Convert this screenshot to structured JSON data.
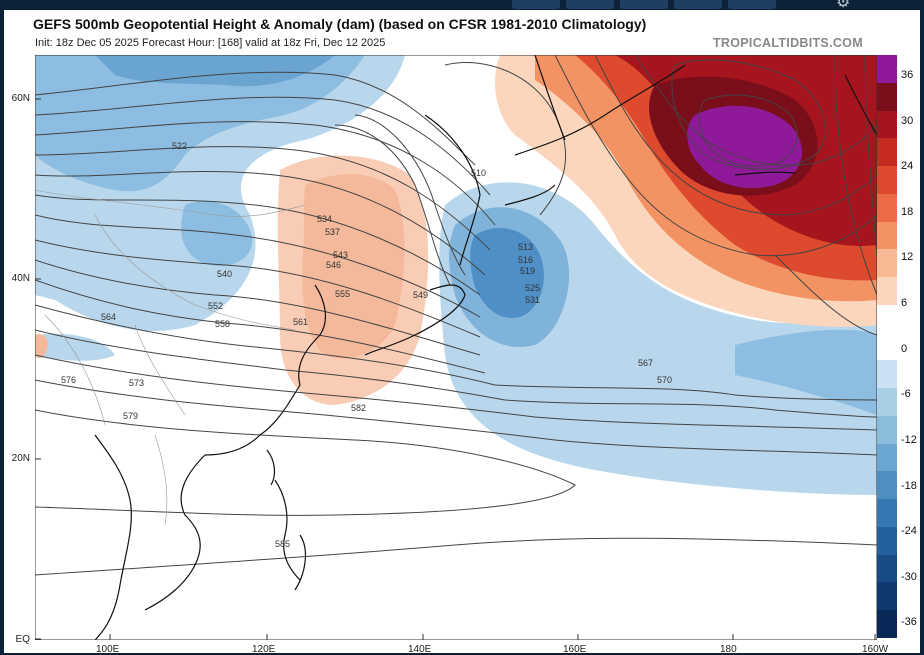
{
  "header": {
    "title": "GEFS 500mb Geopotential Height & Anomaly (dam) (based on CFSR 1981-2010 Climatology)",
    "subtitle": "Init: 18z Dec 05 2025   Forecast Hour: [168]   valid at 18z Fri, Dec 12 2025",
    "brand": "TROPICALTIDBITS.COM"
  },
  "map": {
    "lat_labels": [
      "60N",
      "40N",
      "20N",
      "EQ"
    ],
    "lon_labels": [
      "100E",
      "120E",
      "140E",
      "160E",
      "180",
      "160W"
    ],
    "contour_labels": [
      "510",
      "513",
      "516",
      "519",
      "522",
      "525",
      "531",
      "534",
      "537",
      "540",
      "543",
      "546",
      "549",
      "552",
      "555",
      "558",
      "561",
      "564",
      "567",
      "570",
      "573",
      "576",
      "579",
      "582",
      "585"
    ],
    "colorbar": {
      "ticks": [
        "36",
        "30",
        "24",
        "18",
        "12",
        "6",
        "0",
        "-6",
        "-12",
        "-18",
        "-24",
        "-30",
        "-36"
      ],
      "colors": [
        "#8e1a9a",
        "#7a0e1a",
        "#a6141d",
        "#c62b22",
        "#dd4a2d",
        "#ec6b45",
        "#f39363",
        "#f8b893",
        "#fbd6bd",
        "#ffffff",
        "#ffffff",
        "#c9e1f0",
        "#a9cfe6",
        "#8bbcdc",
        "#6ba6d0",
        "#4d8fc2",
        "#3478b2",
        "#22609e",
        "#174b86",
        "#0f3870",
        "#0a2857"
      ]
    },
    "colors": {
      "warm_core": "#8e1a9a",
      "warm_dark": "#8b0f1f",
      "warm_mid": "#d24a33",
      "warm_light": "#f4b99a",
      "cold_light": "#b8d7ec",
      "cold_mid": "#7fb3da",
      "cold_dark": "#4e8fc6"
    }
  }
}
